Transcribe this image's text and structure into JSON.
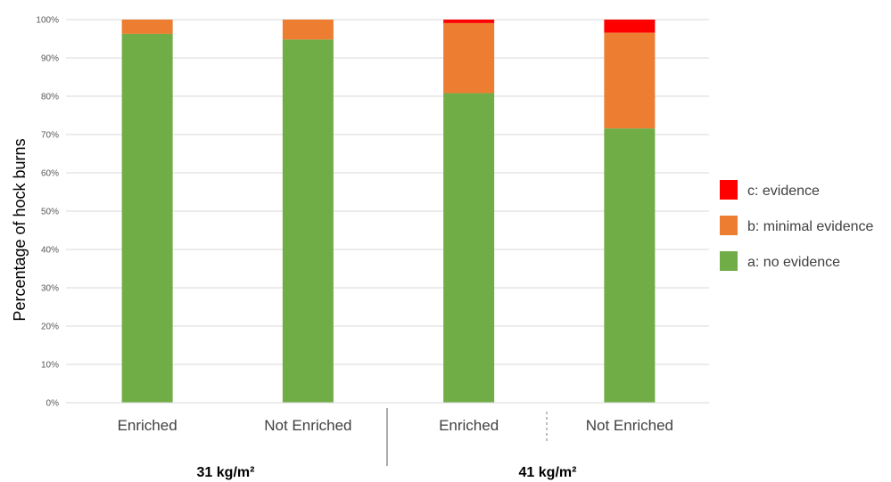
{
  "chart_data": {
    "type": "bar",
    "stacked": true,
    "ylabel": "Percentage of hock burns",
    "ylim": [
      0,
      100
    ],
    "yticks": [
      "0%",
      "10%",
      "20%",
      "30%",
      "40%",
      "50%",
      "60%",
      "70%",
      "80%",
      "90%",
      "100%"
    ],
    "categories": [
      "Enriched",
      "Not Enriched",
      "Enriched",
      "Not Enriched"
    ],
    "groups": [
      {
        "label": "31 kg/m²",
        "categories": [
          0,
          1
        ]
      },
      {
        "label": "41 kg/m²",
        "categories": [
          2,
          3
        ]
      }
    ],
    "series": [
      {
        "name": "a: no evidence",
        "color": "#70ad47",
        "values": [
          96.3,
          94.8,
          80.8,
          71.6
        ]
      },
      {
        "name": "b: minimal evidence",
        "color": "#ed7d31",
        "values": [
          3.7,
          5.2,
          18.3,
          25.0
        ]
      },
      {
        "name": "c: evidence",
        "color": "#ff0000",
        "values": [
          0,
          0,
          0.9,
          3.4
        ]
      }
    ],
    "legend_order": [
      "c: evidence",
      "b: minimal evidence",
      "a: no evidence"
    ],
    "legend_position": "right",
    "grid": true
  }
}
